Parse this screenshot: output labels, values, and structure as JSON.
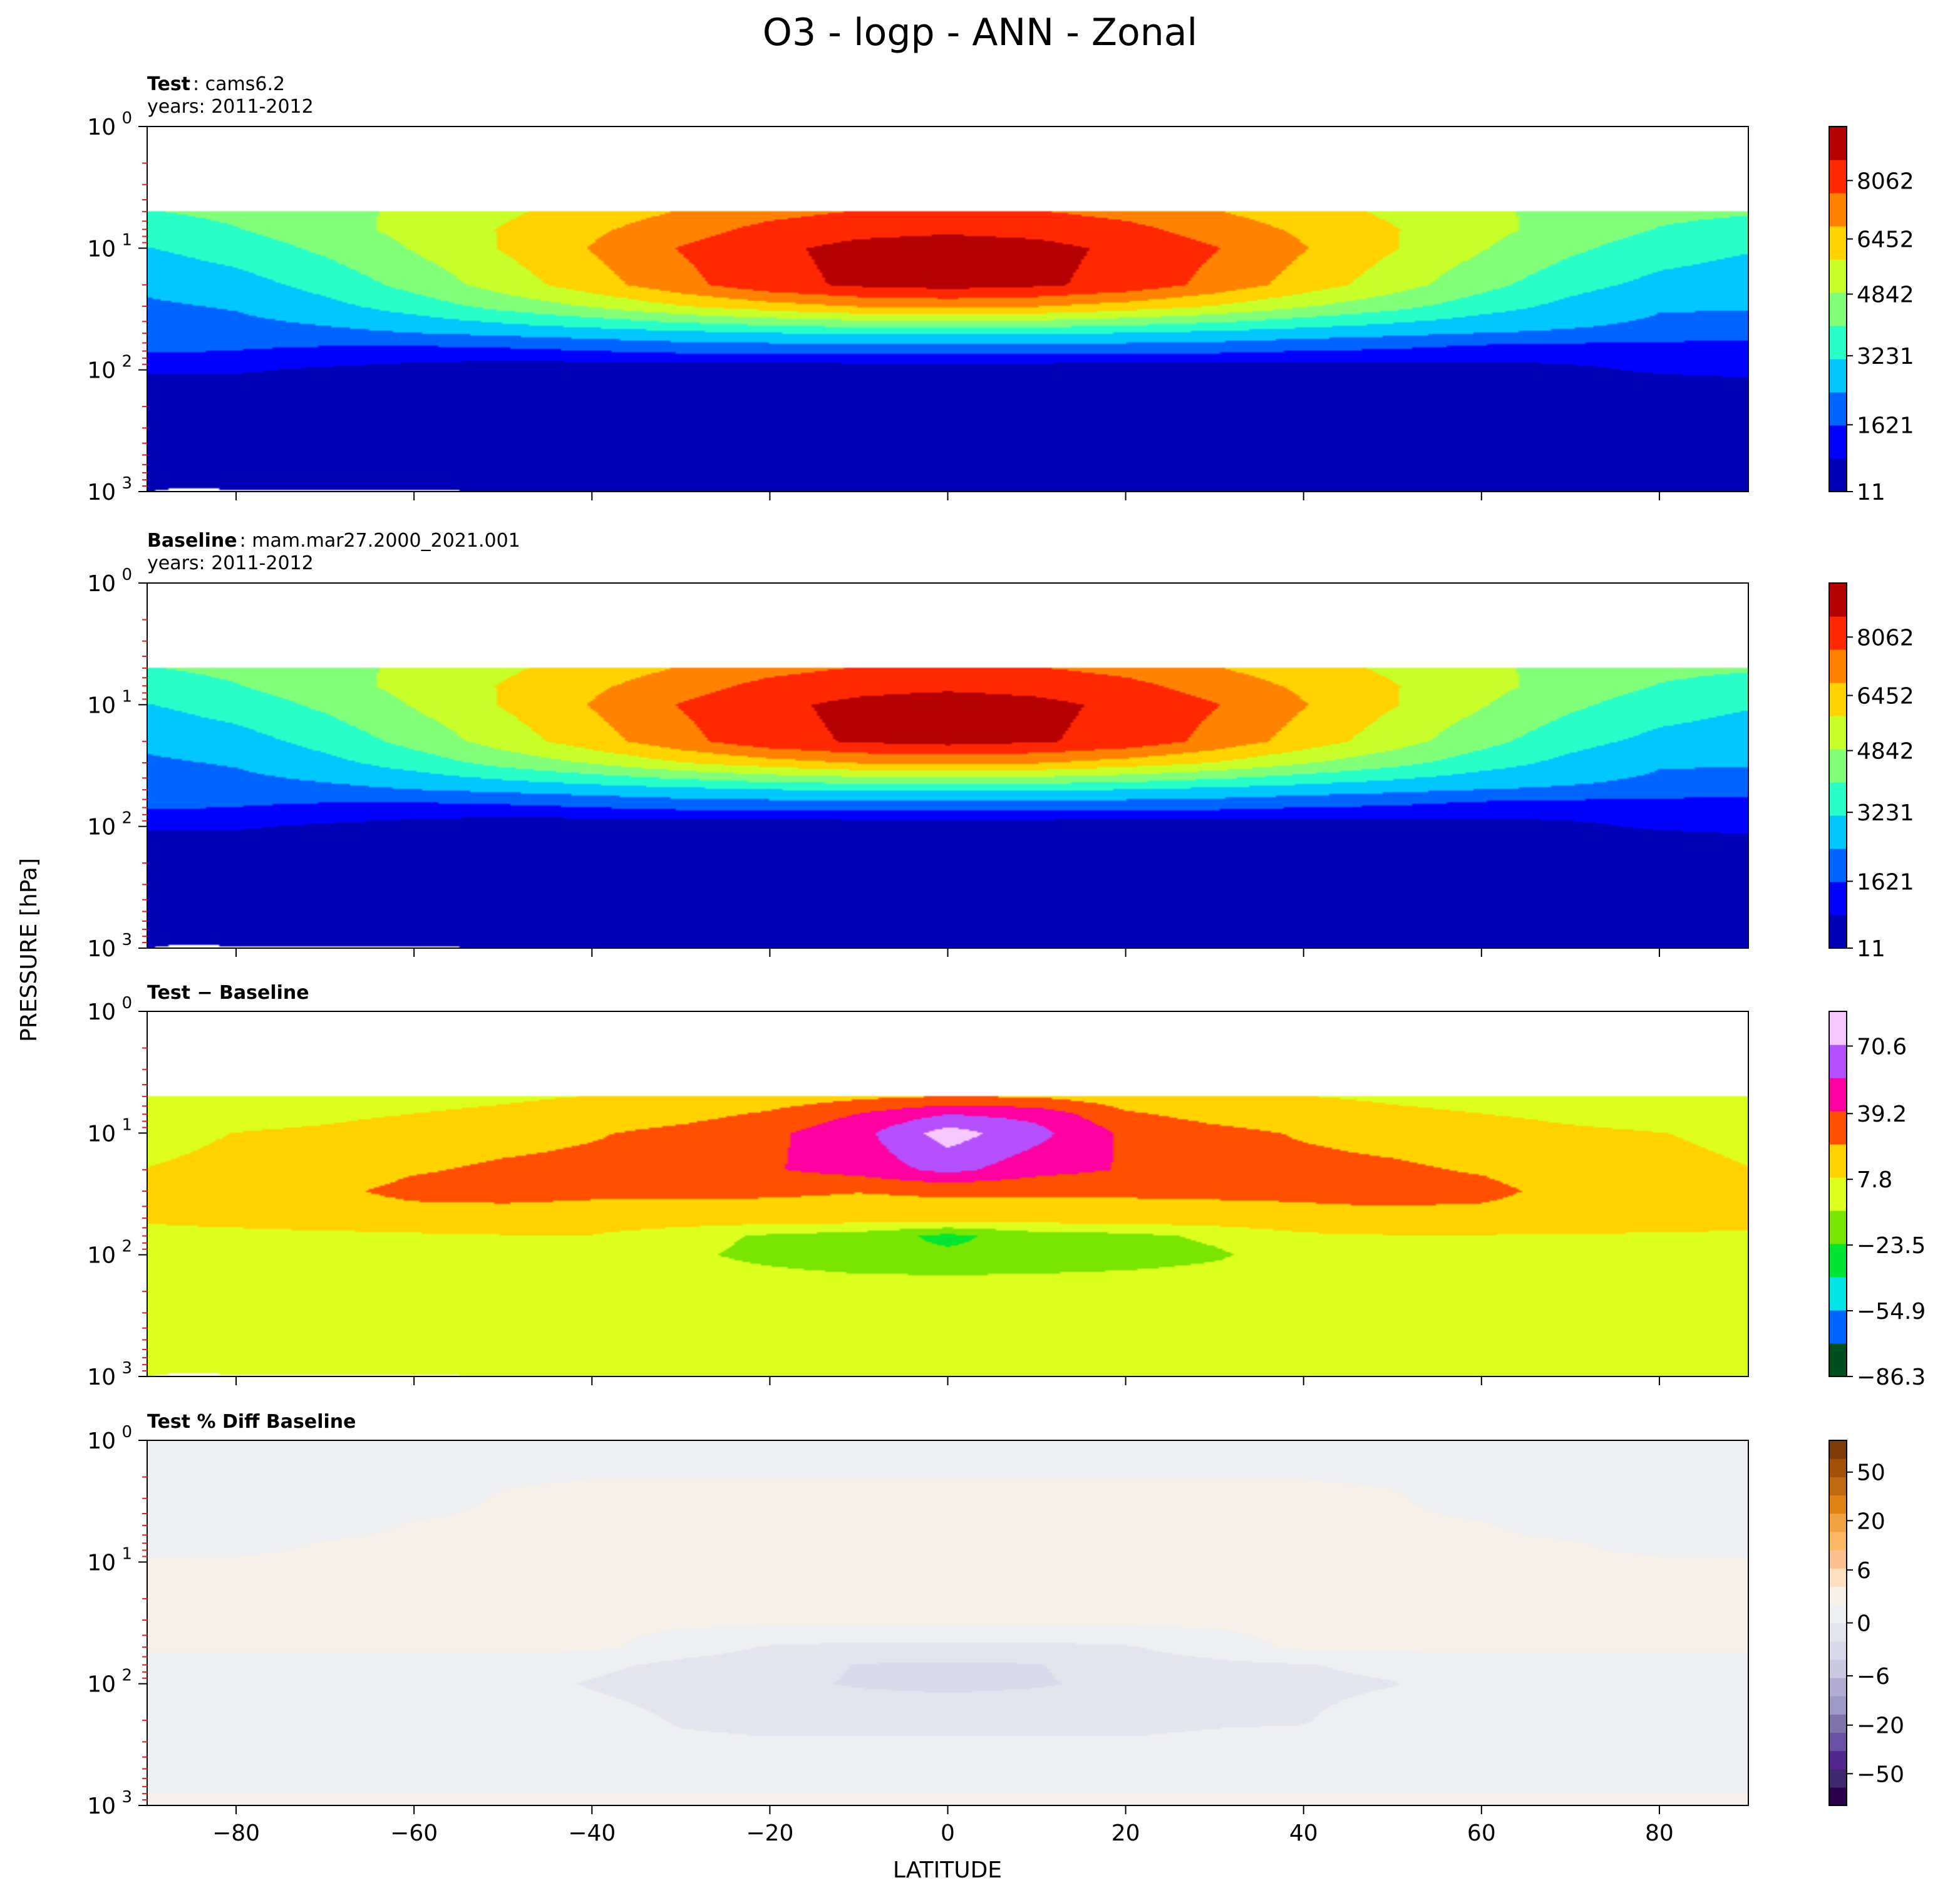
{
  "figure": {
    "title": "O3 - logp - ANN - Zonal",
    "ylabel": "PRESSURE [hPa]",
    "xlabel": "LATITUDE",
    "x_ticks": [
      "−80",
      "−60",
      "−40",
      "−20",
      "0",
      "20",
      "40",
      "60",
      "80"
    ],
    "y_ticks": [
      {
        "base": "10",
        "exp": "0"
      },
      {
        "base": "10",
        "exp": "1"
      },
      {
        "base": "10",
        "exp": "2"
      },
      {
        "base": "10",
        "exp": "3"
      }
    ]
  },
  "chart_data": [
    {
      "type": "heatmap",
      "panel": "test",
      "title_bold": "Test",
      "title_rest": ": cams6.2",
      "subtitle": "years: 2011-2012",
      "xlim": [
        -90,
        90
      ],
      "ylim_hPa": [
        1000,
        1
      ],
      "y_scale": "log",
      "colormap": "jet-like",
      "colorbar_ticks": [
        "8062",
        "6452",
        "4842",
        "3231",
        "1621",
        "11"
      ],
      "colorbar_colors": [
        "#0000b4",
        "#0000ff",
        "#0064ff",
        "#00c8ff",
        "#28ffc8",
        "#82ff78",
        "#c8ff28",
        "#ffd200",
        "#ff8200",
        "#ff2800",
        "#b40000"
      ],
      "colorbar_levels": [
        11,
        816,
        1621,
        2426,
        3231,
        4036,
        4842,
        5647,
        6452,
        7257,
        8062,
        8867
      ],
      "levels_hPa": [
        1000,
        500,
        200,
        100,
        70,
        50,
        30,
        20,
        10,
        7,
        5,
        3
      ],
      "values": [
        [
          0,
          0,
          0,
          0,
          0,
          0,
          0,
          0,
          0,
          0,
          0,
          0,
          0,
          0,
          0,
          0,
          0,
          0,
          0
        ],
        [
          50,
          50,
          50,
          50,
          50,
          50,
          50,
          50,
          50,
          50,
          50,
          50,
          50,
          50,
          50,
          50,
          50,
          50,
          50
        ],
        [
          80,
          80,
          80,
          80,
          80,
          80,
          80,
          80,
          80,
          80,
          80,
          80,
          80,
          80,
          80,
          80,
          80,
          80,
          80
        ],
        [
          900,
          900,
          700,
          500,
          250,
          200,
          200,
          200,
          200,
          200,
          200,
          200,
          200,
          200,
          250,
          500,
          700,
          900,
          1000
        ],
        [
          1700,
          1600,
          1400,
          1300,
          1400,
          1600,
          1800,
          1800,
          1900,
          1900,
          1900,
          1800,
          1800,
          1600,
          1500,
          1200,
          1100,
          1000,
          1000
        ],
        [
          2000,
          2100,
          2200,
          2400,
          2600,
          2800,
          3000,
          3200,
          3300,
          3300,
          3300,
          3200,
          3000,
          2800,
          2600,
          2400,
          2300,
          2200,
          2000
        ],
        [
          2300,
          2500,
          3000,
          3600,
          4300,
          4900,
          5600,
          6100,
          6500,
          6600,
          6500,
          6100,
          5600,
          4900,
          4300,
          3600,
          3000,
          2500,
          2500
        ],
        [
          2600,
          2900,
          3500,
          4300,
          5200,
          6100,
          7000,
          7800,
          8200,
          8400,
          8200,
          7800,
          7000,
          6100,
          5200,
          4300,
          3500,
          3000,
          2800
        ],
        [
          3200,
          3600,
          4200,
          4900,
          5700,
          6500,
          7300,
          7900,
          8300,
          8500,
          8300,
          7900,
          7300,
          6500,
          5700,
          4900,
          4200,
          3600,
          3300
        ],
        [
          3700,
          4000,
          4500,
          5100,
          5700,
          6300,
          6900,
          7500,
          7800,
          7900,
          7800,
          7500,
          6900,
          6300,
          5700,
          5100,
          4500,
          4000,
          3800
        ],
        [
          4000,
          4200,
          4600,
          5000,
          5500,
          6000,
          6500,
          7000,
          7300,
          7400,
          7300,
          7000,
          6500,
          6000,
          5500,
          5000,
          4600,
          4200,
          4100
        ],
        [
          4100,
          4300,
          4600,
          5000,
          5400,
          5800,
          6300,
          6700,
          7000,
          7100,
          7000,
          6700,
          6300,
          5800,
          5400,
          5000,
          4600,
          4300,
          4200
        ]
      ]
    },
    {
      "type": "heatmap",
      "panel": "baseline",
      "title_bold": "Baseline",
      "title_rest": ": mam.mar27.2000_2021.001",
      "subtitle": "years: 2011-2012",
      "xlim": [
        -90,
        90
      ],
      "ylim_hPa": [
        1000,
        1
      ],
      "y_scale": "log",
      "colormap": "jet-like",
      "colorbar_ticks": [
        "8062",
        "6452",
        "4842",
        "3231",
        "1621",
        "11"
      ],
      "colorbar_colors": [
        "#0000b4",
        "#0000ff",
        "#0064ff",
        "#00c8ff",
        "#28ffc8",
        "#82ff78",
        "#c8ff28",
        "#ffd200",
        "#ff8200",
        "#ff2800",
        "#b40000"
      ],
      "colorbar_levels": [
        11,
        816,
        1621,
        2426,
        3231,
        4036,
        4842,
        5647,
        6452,
        7257,
        8062,
        8867
      ],
      "levels_hPa": [
        1000,
        500,
        200,
        100,
        70,
        50,
        30,
        20,
        10,
        7,
        5,
        3
      ],
      "values": [
        [
          0,
          0,
          0,
          0,
          0,
          0,
          0,
          0,
          0,
          0,
          0,
          0,
          0,
          0,
          0,
          0,
          0,
          0,
          0
        ],
        [
          50,
          50,
          50,
          50,
          50,
          50,
          50,
          50,
          50,
          50,
          50,
          50,
          50,
          50,
          50,
          50,
          50,
          50,
          50
        ],
        [
          80,
          80,
          80,
          80,
          80,
          80,
          80,
          80,
          80,
          80,
          80,
          80,
          80,
          80,
          80,
          80,
          80,
          80,
          80
        ],
        [
          900,
          900,
          700,
          500,
          250,
          200,
          200,
          200,
          200,
          200,
          200,
          200,
          200,
          200,
          250,
          500,
          700,
          900,
          1000
        ],
        [
          1700,
          1600,
          1400,
          1300,
          1400,
          1600,
          1800,
          1800,
          1900,
          1900,
          1900,
          1800,
          1800,
          1600,
          1500,
          1200,
          1100,
          1000,
          1000
        ],
        [
          2000,
          2100,
          2200,
          2400,
          2600,
          2800,
          3000,
          3200,
          3300,
          3300,
          3300,
          3200,
          3000,
          2800,
          2600,
          2400,
          2300,
          2200,
          2000
        ],
        [
          2300,
          2500,
          3000,
          3600,
          4300,
          4900,
          5600,
          6100,
          6500,
          6600,
          6500,
          6100,
          5600,
          4900,
          4300,
          3600,
          3000,
          2500,
          2500
        ],
        [
          2600,
          2900,
          3500,
          4300,
          5200,
          6100,
          7000,
          7800,
          8150,
          8350,
          8150,
          7800,
          7000,
          6100,
          5200,
          4300,
          3500,
          3000,
          2800
        ],
        [
          3200,
          3600,
          4200,
          4900,
          5700,
          6500,
          7300,
          7900,
          8250,
          8450,
          8250,
          7900,
          7300,
          6500,
          5700,
          4900,
          4200,
          3600,
          3300
        ],
        [
          3700,
          4000,
          4500,
          5100,
          5700,
          6300,
          6900,
          7500,
          7800,
          7900,
          7800,
          7500,
          6900,
          6300,
          5700,
          5100,
          4500,
          4000,
          3800
        ],
        [
          4000,
          4200,
          4600,
          5000,
          5500,
          6000,
          6500,
          7000,
          7300,
          7400,
          7300,
          7000,
          6500,
          6000,
          5500,
          5000,
          4600,
          4200,
          4100
        ],
        [
          4100,
          4300,
          4600,
          5000,
          5400,
          5800,
          6300,
          6700,
          7000,
          7100,
          7000,
          6700,
          6300,
          5800,
          5400,
          5000,
          4600,
          4300,
          4200
        ]
      ]
    },
    {
      "type": "heatmap",
      "panel": "difference",
      "title_bold": "Test − Baseline",
      "title_rest": "",
      "subtitle": "",
      "xlim": [
        -90,
        90
      ],
      "ylim_hPa": [
        1000,
        1
      ],
      "y_scale": "log",
      "colormap": "diverging",
      "colorbar_ticks": [
        "70.6",
        "39.2",
        "7.8",
        "−23.5",
        "−54.9",
        "−86.3"
      ],
      "colorbar_colors": [
        "#00501e",
        "#0064ff",
        "#00e6e6",
        "#00e632",
        "#78e600",
        "#dcff1e",
        "#ffd200",
        "#ff5000",
        "#ff00a0",
        "#b450ff",
        "#f5c8ff"
      ],
      "colorbar_levels": [
        -86.3,
        -70.6,
        -54.9,
        -39.2,
        -23.5,
        -7.8,
        7.8,
        23.5,
        39.2,
        55.0,
        70.6,
        86.3
      ],
      "levels_hPa": [
        1000,
        500,
        200,
        100,
        70,
        50,
        30,
        20,
        10,
        7,
        5,
        3
      ],
      "values": [
        [
          0,
          0,
          0,
          0,
          0,
          0,
          0,
          0,
          0,
          0,
          0,
          0,
          0,
          0,
          0,
          0,
          0,
          0,
          0
        ],
        [
          0,
          0,
          0,
          0,
          0,
          0,
          0,
          0,
          0,
          0,
          0,
          0,
          0,
          0,
          0,
          0,
          0,
          0,
          0
        ],
        [
          2,
          2,
          2,
          2,
          2,
          2,
          2,
          2,
          2,
          2,
          2,
          2,
          2,
          2,
          2,
          2,
          2,
          2,
          2
        ],
        [
          3,
          3,
          3,
          3,
          3,
          2,
          -5,
          -12,
          -18,
          -20,
          -18,
          -15,
          -10,
          0,
          3,
          3,
          3,
          3,
          3
        ],
        [
          5,
          5,
          5,
          6,
          7,
          7,
          -2,
          -10,
          -15,
          -28,
          -15,
          -12,
          -5,
          5,
          7,
          7,
          7,
          6,
          6
        ],
        [
          9,
          11,
          14,
          16,
          18,
          18,
          18,
          16,
          16,
          16,
          16,
          16,
          18,
          20,
          20,
          18,
          16,
          14,
          12
        ],
        [
          12,
          15,
          20,
          28,
          28,
          26,
          26,
          26,
          24,
          26,
          26,
          26,
          26,
          26,
          28,
          28,
          18,
          14,
          12
        ],
        [
          8,
          10,
          14,
          22,
          26,
          28,
          30,
          38,
          45,
          60,
          45,
          38,
          30,
          28,
          26,
          22,
          14,
          10,
          8
        ],
        [
          5,
          8,
          10,
          14,
          18,
          22,
          28,
          36,
          50,
          78,
          60,
          36,
          28,
          22,
          18,
          14,
          10,
          8,
          6
        ],
        [
          2,
          3,
          5,
          8,
          10,
          14,
          18,
          26,
          40,
          55,
          50,
          26,
          18,
          14,
          10,
          8,
          5,
          3,
          2
        ],
        [
          0,
          1,
          2,
          4,
          6,
          8,
          10,
          14,
          20,
          24,
          22,
          14,
          10,
          8,
          6,
          4,
          2,
          1,
          0
        ],
        [
          0,
          0,
          1,
          2,
          3,
          4,
          5,
          6,
          8,
          9,
          8,
          6,
          5,
          4,
          3,
          2,
          1,
          0,
          0
        ]
      ]
    },
    {
      "type": "heatmap",
      "panel": "percent_difference",
      "title_bold": "Test % Diff Baseline",
      "title_rest": "",
      "subtitle": "",
      "xlim": [
        -90,
        90
      ],
      "ylim_hPa": [
        1000,
        1
      ],
      "y_scale": "log",
      "colormap": "PuOr-like",
      "colorbar_ticks": [
        "50",
        "20",
        "6",
        "0",
        "−6",
        "−20",
        "−50"
      ],
      "colorbar_colors": [
        "#2d004b",
        "#402870",
        "#54278f",
        "#6a51a3",
        "#8073ac",
        "#9e9ac8",
        "#b2abd2",
        "#cbc9e2",
        "#d8daeb",
        "#e4e4ef",
        "#eeeff2",
        "#f7f0e8",
        "#fde0c0",
        "#fdc090",
        "#fdb863",
        "#f1a340",
        "#e08214",
        "#c06a10",
        "#a35008",
        "#7f3b08"
      ],
      "colorbar_levels": [
        -70,
        -60,
        -50,
        -40,
        -30,
        -20,
        -14,
        -10,
        -6,
        -3,
        -1,
        1,
        3,
        6,
        10,
        14,
        20,
        30,
        40,
        50,
        70
      ],
      "levels_hPa": [
        1000,
        500,
        200,
        100,
        70,
        50,
        30,
        20,
        10,
        7,
        5,
        3,
        1
      ],
      "values": [
        [
          1.5,
          1.5,
          1.5,
          1.5,
          1.5,
          1.5,
          1.5,
          1.5,
          1.5,
          1.5,
          1.5,
          1.5,
          1.5,
          1.5,
          1.5,
          1.5,
          1.5,
          1.5,
          1.5
        ],
        [
          0,
          0,
          0,
          0,
          0,
          0,
          0,
          0,
          0,
          0,
          0,
          0,
          0,
          0,
          0,
          0,
          0,
          0,
          0
        ],
        [
          0,
          0,
          0,
          0,
          0,
          0,
          -1.2,
          -1.5,
          -1.5,
          -1.5,
          -1.5,
          -1.5,
          -1.2,
          -1.1,
          0,
          0,
          0,
          0,
          0
        ],
        [
          0,
          0,
          0,
          0,
          0,
          -1.2,
          -2,
          -2.5,
          -3.2,
          -3.5,
          -3.2,
          -2.5,
          -2,
          -1.5,
          -1.1,
          0,
          0,
          0,
          0
        ],
        [
          0,
          0,
          0,
          0,
          0,
          -0.5,
          -1.5,
          -2,
          -3.1,
          -3.2,
          -3.1,
          -2,
          -1.5,
          -1.1,
          -0.5,
          0,
          0,
          0,
          0
        ],
        [
          1.5,
          1.5,
          1.5,
          1.5,
          1.5,
          1.5,
          0,
          -1.2,
          -1.5,
          -1.5,
          -1.5,
          -1.2,
          0,
          1.5,
          1.5,
          1.5,
          1.5,
          1.5,
          1.5
        ],
        [
          1.5,
          1.5,
          1.5,
          1.5,
          1.5,
          1.5,
          1.5,
          1.5,
          1.5,
          1.5,
          1.5,
          1.5,
          1.5,
          1.5,
          1.5,
          1.5,
          1.5,
          1.5,
          1.5
        ],
        [
          1.5,
          1.5,
          1.5,
          1.5,
          1.5,
          1.5,
          1.5,
          1.5,
          1.5,
          1.5,
          1.5,
          1.5,
          1.5,
          1.5,
          1.5,
          1.5,
          1.5,
          1.5,
          1.5
        ],
        [
          1.2,
          1.5,
          1.5,
          1.5,
          1.5,
          1.5,
          1.5,
          1.5,
          1.5,
          1.5,
          1.5,
          1.5,
          1.5,
          1.5,
          1.5,
          1.5,
          1.5,
          1.5,
          1.2
        ],
        [
          0,
          0,
          1.2,
          1.5,
          1.5,
          1.5,
          1.5,
          1.5,
          1.5,
          1.5,
          1.5,
          1.5,
          1.5,
          1.5,
          1.5,
          1.5,
          1.2,
          0,
          0
        ],
        [
          0,
          0,
          0,
          1.2,
          1.5,
          1.5,
          1.5,
          1.5,
          1.5,
          1.5,
          1.5,
          1.5,
          1.5,
          1.5,
          1.5,
          1.2,
          0,
          0,
          0
        ],
        [
          0,
          0,
          0,
          0,
          1.2,
          1.5,
          1.5,
          1.5,
          1.5,
          1.5,
          1.5,
          1.5,
          1.5,
          1.5,
          1.2,
          0,
          0,
          0,
          0
        ],
        [
          0,
          0,
          0,
          0,
          0,
          0,
          0,
          0,
          0,
          0,
          0,
          0,
          0,
          0,
          0,
          0,
          0,
          0,
          0
        ]
      ]
    }
  ]
}
